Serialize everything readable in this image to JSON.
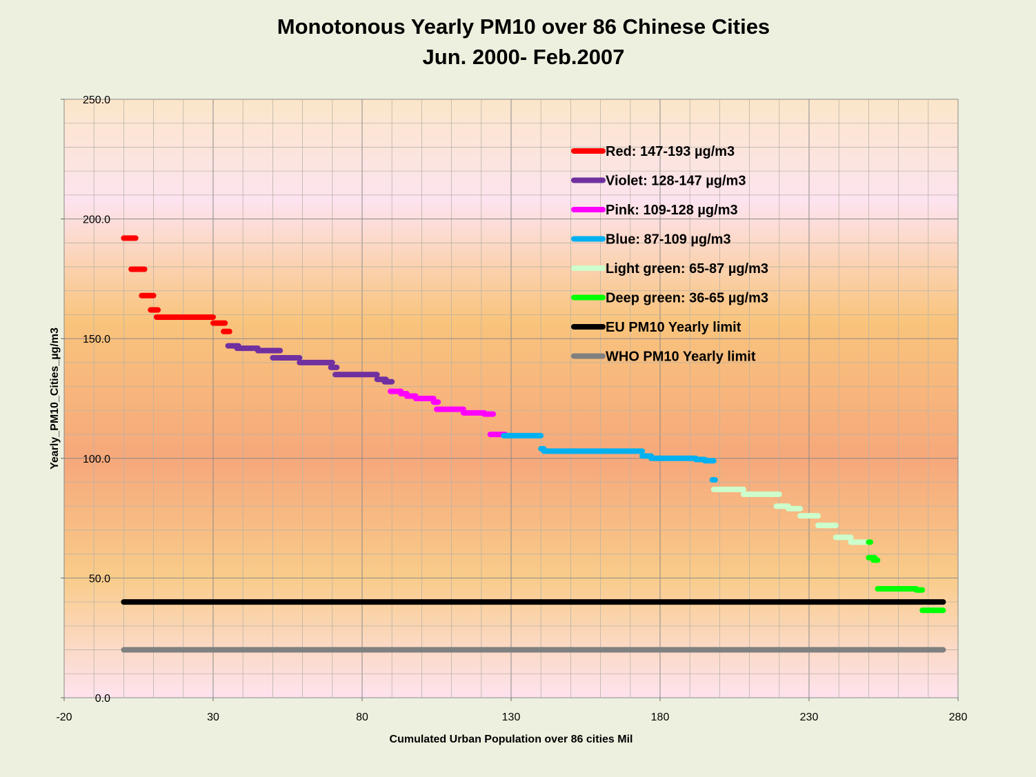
{
  "chart_data": {
    "type": "scatter",
    "title": "Monotonous Yearly PM10 over 86 Chinese Cities",
    "subtitle": "Jun. 2000- Feb.2007",
    "xlabel": "Cumulated Urban Population over 86 cities Mil",
    "ylabel": "Yearly_PM10_Cities_µg/m3",
    "xlim": [
      -20,
      280
    ],
    "ylim": [
      0,
      250
    ],
    "x_ticks": [
      "-20",
      "30",
      "80",
      "130",
      "180",
      "230",
      "280"
    ],
    "y_ticks": [
      "0.0",
      "50.0",
      "100.0",
      "150.0",
      "200.0",
      "250.0"
    ],
    "grid": true,
    "legend_position": "upper-right",
    "series": [
      {
        "name": "Red: 147-193 µg/m3",
        "color": "#ff0000",
        "segments": [
          [
            0,
            4,
            192
          ],
          [
            2.5,
            7,
            179
          ],
          [
            6,
            10,
            168
          ],
          [
            9,
            11.5,
            162
          ],
          [
            11,
            30,
            159
          ],
          [
            30,
            34,
            156.5
          ],
          [
            33.5,
            35.5,
            153
          ]
        ]
      },
      {
        "name": "Violet: 128-147 µg/m3",
        "color": "#7030a0",
        "segments": [
          [
            35,
            38.5,
            147
          ],
          [
            38,
            45,
            146
          ],
          [
            45,
            52.5,
            145
          ],
          [
            50,
            59,
            142
          ],
          [
            59,
            70,
            140
          ],
          [
            69.5,
            71.5,
            138
          ],
          [
            71,
            85,
            135
          ],
          [
            85,
            88,
            133
          ],
          [
            87.5,
            90,
            132
          ]
        ]
      },
      {
        "name": "Pink: 109-128 µg/m3",
        "color": "#ff00ff",
        "segments": [
          [
            89.5,
            93,
            128
          ],
          [
            93,
            95,
            127
          ],
          [
            95,
            98,
            126
          ],
          [
            98,
            104,
            125
          ],
          [
            104,
            105.5,
            123.5
          ],
          [
            105,
            114,
            120.5
          ],
          [
            114,
            121,
            119
          ],
          [
            121,
            124,
            118.5
          ],
          [
            123,
            128,
            110
          ]
        ]
      },
      {
        "name": "Blue: 87-109 µg/m3",
        "color": "#00b0f0",
        "segments": [
          [
            127.5,
            140,
            109.5
          ],
          [
            140,
            141,
            104
          ],
          [
            141,
            174,
            103
          ],
          [
            174,
            177,
            101
          ],
          [
            177,
            192,
            100
          ],
          [
            192,
            195,
            99.5
          ],
          [
            195,
            198,
            99
          ],
          [
            197.5,
            198.5,
            91
          ]
        ]
      },
      {
        "name": "Light green: 65-87 µg/m3",
        "color": "#ccffcc",
        "segments": [
          [
            198,
            208,
            87
          ],
          [
            208,
            220,
            85
          ],
          [
            219,
            223,
            80
          ],
          [
            223,
            227,
            79
          ],
          [
            227,
            233,
            76
          ],
          [
            233,
            239,
            72
          ],
          [
            239,
            244,
            67
          ],
          [
            244,
            250,
            65
          ]
        ]
      },
      {
        "name": "Deep green: 36-65 µg/m3",
        "color": "#00ff00",
        "segments": [
          [
            250,
            250.6,
            65
          ],
          [
            250,
            252,
            58.5
          ],
          [
            251.5,
            253,
            57.5
          ],
          [
            253,
            266,
            45.5
          ],
          [
            266,
            268,
            45
          ],
          [
            268,
            275,
            36.5
          ]
        ]
      },
      {
        "name": "EU PM10 Yearly limit",
        "color": "#000000",
        "segments": [
          [
            0,
            275,
            40
          ]
        ]
      },
      {
        "name": "WHO PM10 Yearly limit",
        "color": "#808080",
        "segments": [
          [
            0,
            275,
            20
          ]
        ]
      }
    ]
  }
}
